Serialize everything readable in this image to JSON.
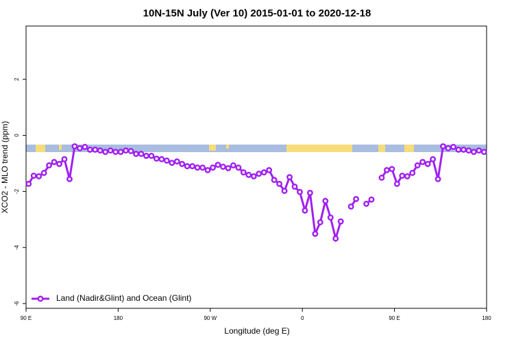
{
  "chart_data": {
    "type": "line",
    "title": "10N-15N July (Ver 10)   2015-01-01 to 2020-12-18",
    "x_label": "Longitude (deg E)",
    "y_label": "XCO2 - MLO trend (ppm)",
    "x": [
      92.5,
      97.5,
      102.5,
      107.5,
      112.5,
      117.5,
      122.5,
      127.5,
      132.5,
      137.5,
      142.5,
      147.5,
      152.5,
      157.5,
      162.5,
      167.5,
      172.5,
      177.5,
      182.5,
      187.5,
      192.5,
      197.5,
      202.5,
      207.5,
      212.5,
      217.5,
      222.5,
      227.5,
      232.5,
      237.5,
      242.5,
      247.5,
      252.5,
      257.5,
      262.5,
      267.5,
      272.5,
      277.5,
      282.5,
      287.5,
      292.5,
      297.5,
      302.5,
      307.5,
      312.5,
      317.5,
      322.5,
      327.5,
      332.5,
      337.5,
      342.5,
      347.5,
      352.5,
      357.5,
      362.5,
      367.5,
      372.5,
      377.5,
      382.5,
      387.5,
      392.5,
      397.5,
      402.5,
      407.5,
      412.5,
      417.5,
      422.5,
      427.5,
      432.5,
      437.5,
      442.5,
      447.5,
      452.5,
      457.5,
      462.5,
      467.5,
      472.5,
      477.5,
      482.5,
      487.5,
      492.5,
      497.5,
      502.5,
      507.5,
      512.5,
      517.5,
      522.5,
      527.5,
      532.5,
      537.5
    ],
    "series": [
      {
        "name": "Land (Nadir&Glint) and Ocean (Glint)",
        "color": "#a020f0",
        "values": [
          -1.73,
          -1.44,
          -1.46,
          -1.34,
          -1.07,
          -0.95,
          -1.02,
          -0.85,
          -1.56,
          -0.39,
          -0.46,
          -0.41,
          -0.51,
          -0.51,
          -0.54,
          -0.59,
          -0.54,
          -0.59,
          -0.59,
          -0.54,
          -0.56,
          -0.66,
          -0.66,
          -0.73,
          -0.73,
          -0.83,
          -0.85,
          -0.9,
          -0.98,
          -0.93,
          -1.02,
          -1.1,
          -1.1,
          -1.15,
          -1.15,
          -1.24,
          -1.15,
          -1.05,
          -1.12,
          -1.17,
          -1.07,
          -1.15,
          -1.32,
          -1.41,
          -1.46,
          -1.37,
          -1.32,
          -1.24,
          -1.59,
          -1.73,
          -1.98,
          -1.49,
          -1.83,
          -2.02,
          -2.68,
          -2.05,
          -3.51,
          -3.1,
          -2.34,
          -2.93,
          -3.68,
          -3.07,
          null,
          -2.54,
          -2.27,
          null,
          -2.44,
          -2.29,
          null,
          -1.51,
          -1.24,
          -1.2,
          -1.73,
          -1.44,
          -1.46,
          -1.34,
          -1.07,
          -0.95,
          -1.02,
          -0.85,
          -1.56,
          -0.39,
          -0.46,
          -0.41,
          -0.51,
          -0.51,
          -0.54,
          -0.59,
          -0.54,
          -0.59
        ]
      }
    ],
    "xlim": [
      90,
      540
    ],
    "xticks": [
      {
        "value": 90,
        "label": "90 E"
      },
      180,
      {
        "value": 270,
        "label": "90 W"
      },
      {
        "value": 360,
        "label": "0"
      },
      {
        "value": 450,
        "label": "90 E"
      },
      {
        "value": 540,
        "label": "180"
      }
    ],
    "ylim": [
      -6.17,
      3.9
    ],
    "yticks": [
      -6,
      -4,
      -2,
      0,
      2
    ],
    "legend": "bottom-left"
  }
}
